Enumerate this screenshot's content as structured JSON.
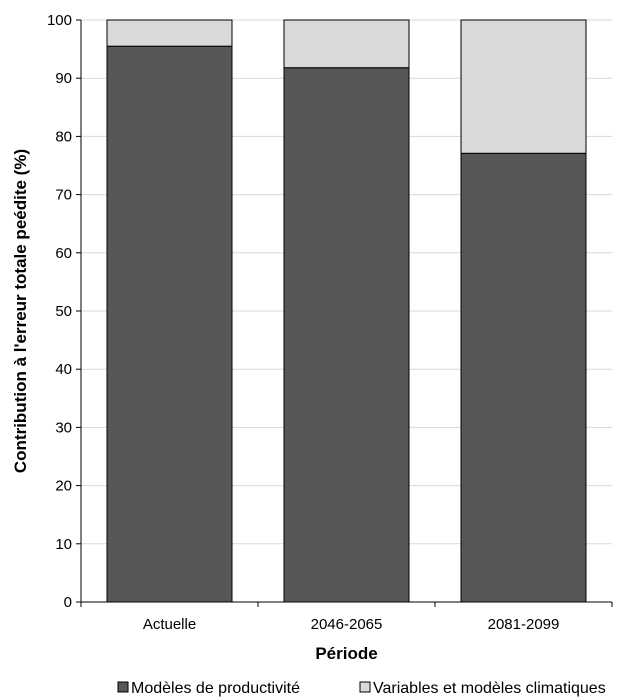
{
  "chart_data": {
    "type": "bar",
    "stacked": true,
    "categories": [
      "Actuelle",
      "2046-2065",
      "2081-2099"
    ],
    "series": [
      {
        "name": "Modèles de productivité",
        "values": [
          95.5,
          91.8,
          77.1
        ],
        "color": "#575759"
      },
      {
        "name": "Variables et modèles climatiques",
        "values": [
          4.5,
          8.2,
          22.9
        ],
        "color": "#d9d9db"
      }
    ],
    "xlabel": "Période",
    "ylabel": "Contribution à l'erreur totale peédite (%)",
    "ylim": [
      0,
      100
    ],
    "yticks": [
      "0",
      "10",
      "20",
      "30",
      "40",
      "50",
      "60",
      "70",
      "80",
      "90",
      "100"
    ],
    "grid": true,
    "legend_position": "bottom"
  }
}
